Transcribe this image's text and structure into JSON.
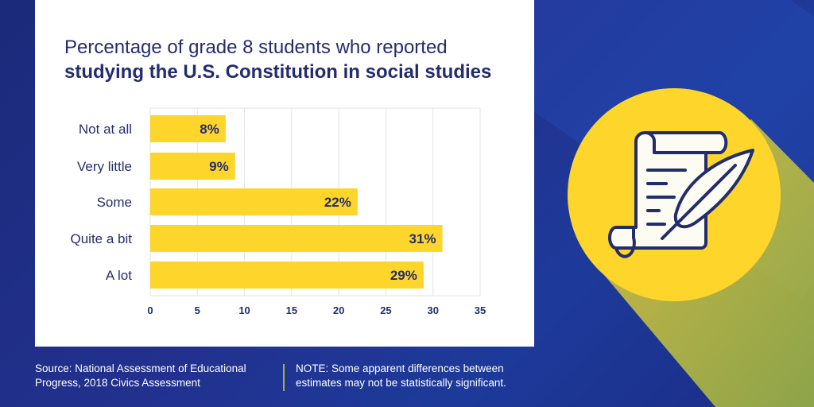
{
  "title_line1": "Percentage of grade 8 students who reported",
  "title_line2": "studying the U.S. Constitution in social studies",
  "chart_data": {
    "type": "bar",
    "orientation": "horizontal",
    "categories": [
      "Not at all",
      "Very little",
      "Some",
      "Quite a bit",
      "A lot"
    ],
    "values": [
      8,
      9,
      22,
      31,
      29
    ],
    "data_labels": [
      "8%",
      "9%",
      "22%",
      "31%",
      "29%"
    ],
    "xlim": [
      0,
      35
    ],
    "xticks": [
      "0",
      "5",
      "10",
      "15",
      "20",
      "25",
      "30",
      "35"
    ],
    "grid": true,
    "bar_color": "#fdd52b"
  },
  "footer": {
    "source_line1": "Source: National Assessment of Educational",
    "source_line2": "Progress, 2018 Civics Assessment",
    "note_line1": "NOTE: Some apparent differences between",
    "note_line2": "estimates may not be statistically significant."
  },
  "colors": {
    "navy": "#232d6e",
    "yellow": "#fdd52b",
    "background": "#1e2c84"
  },
  "icon": "scroll-quill-icon"
}
